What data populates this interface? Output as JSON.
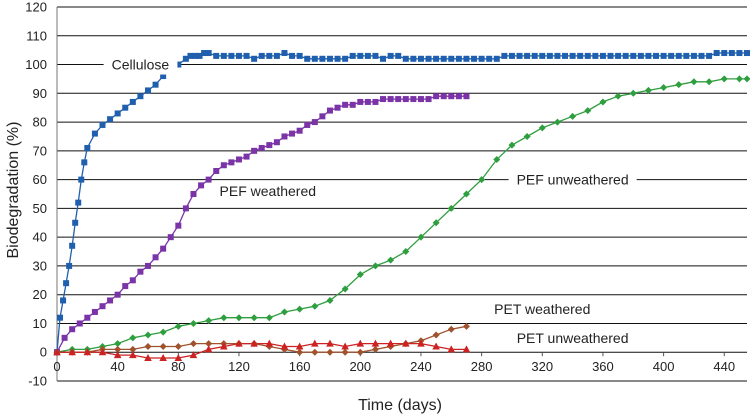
{
  "chart_data": {
    "type": "line",
    "title": "",
    "xlabel": "Time (days)",
    "ylabel": "Biodegradation (%)",
    "xlim": [
      0,
      455
    ],
    "ylim": [
      -10,
      120
    ],
    "xticks": [
      0,
      40,
      80,
      120,
      160,
      200,
      240,
      280,
      320,
      360,
      400,
      440
    ],
    "yticks": [
      -10,
      0,
      10,
      20,
      30,
      40,
      50,
      60,
      70,
      80,
      90,
      100,
      110,
      120
    ],
    "grid": "horizontal",
    "legend": "none (labels placed on chart)",
    "series": [
      {
        "name": "Cellulose",
        "color": "#1f5fad",
        "marker": "square",
        "x": [
          0,
          2,
          4,
          6,
          8,
          10,
          12,
          14,
          16,
          18,
          20,
          25,
          30,
          35,
          40,
          45,
          50,
          55,
          60,
          65,
          70,
          75,
          80,
          85,
          88,
          91,
          94,
          97,
          100,
          105,
          110,
          115,
          120,
          125,
          130,
          135,
          140,
          145,
          150,
          155,
          160,
          165,
          170,
          175,
          180,
          185,
          190,
          195,
          200,
          205,
          210,
          215,
          220,
          225,
          230,
          235,
          240,
          245,
          250,
          255,
          260,
          265,
          270,
          275,
          280,
          285,
          290,
          295,
          300,
          305,
          310,
          315,
          320,
          325,
          330,
          335,
          340,
          345,
          350,
          355,
          360,
          365,
          370,
          375,
          380,
          385,
          390,
          395,
          400,
          405,
          410,
          415,
          420,
          425,
          430,
          435,
          440,
          445,
          450,
          455
        ],
        "values": [
          0,
          12,
          18,
          24,
          30,
          37,
          45,
          52,
          60,
          66,
          71,
          76,
          79,
          81,
          83,
          85,
          87,
          89,
          91,
          93,
          96,
          98,
          100,
          102,
          103,
          103,
          103,
          104,
          104,
          103,
          103,
          103,
          103,
          103,
          102,
          103,
          103,
          103,
          104,
          103,
          103,
          102,
          102,
          102,
          102,
          102,
          102,
          103,
          103,
          103,
          103,
          102,
          103,
          103,
          102,
          102,
          102,
          102,
          102,
          102,
          102,
          102,
          102,
          102,
          102,
          102,
          102,
          103,
          103,
          103,
          103,
          103,
          103,
          103,
          103,
          103,
          103,
          103,
          103,
          103,
          103,
          103,
          103,
          103,
          103,
          103,
          103,
          103,
          103,
          103,
          103,
          103,
          103,
          103,
          103,
          104,
          104,
          104,
          104,
          104
        ]
      },
      {
        "name": "PEF weathered",
        "color": "#7b33a8",
        "marker": "square",
        "x": [
          0,
          5,
          10,
          15,
          20,
          25,
          30,
          35,
          40,
          45,
          50,
          55,
          60,
          65,
          70,
          75,
          80,
          85,
          90,
          95,
          100,
          105,
          110,
          115,
          120,
          125,
          130,
          135,
          140,
          145,
          150,
          155,
          160,
          165,
          170,
          175,
          180,
          185,
          190,
          195,
          200,
          205,
          210,
          215,
          220,
          225,
          230,
          235,
          240,
          245,
          250,
          255,
          260,
          265,
          270
        ],
        "values": [
          0,
          5,
          8,
          10,
          12,
          14,
          16,
          18,
          20,
          23,
          25,
          28,
          30,
          33,
          36,
          40,
          44,
          50,
          55,
          58,
          60,
          63,
          65,
          66,
          67,
          68,
          70,
          71,
          72,
          73,
          75,
          76,
          77,
          79,
          80,
          82,
          84,
          85,
          86,
          86,
          87,
          87,
          87,
          88,
          88,
          88,
          88,
          88,
          88,
          88,
          89,
          89,
          89,
          89,
          89
        ]
      },
      {
        "name": "PEF unweathered",
        "color": "#2e9e3e",
        "marker": "diamond",
        "x": [
          0,
          10,
          20,
          30,
          40,
          50,
          60,
          70,
          80,
          90,
          100,
          110,
          120,
          130,
          140,
          150,
          160,
          170,
          180,
          190,
          200,
          210,
          220,
          230,
          240,
          250,
          260,
          270,
          280,
          290,
          300,
          310,
          320,
          330,
          340,
          350,
          360,
          370,
          380,
          390,
          400,
          410,
          420,
          430,
          440,
          450,
          455
        ],
        "values": [
          0,
          1,
          1,
          2,
          3,
          5,
          6,
          7,
          9,
          10,
          11,
          12,
          12,
          12,
          12,
          14,
          15,
          16,
          18,
          22,
          27,
          30,
          32,
          35,
          40,
          45,
          50,
          55,
          60,
          67,
          72,
          75,
          78,
          80,
          82,
          84,
          87,
          89,
          90,
          91,
          92,
          93,
          94,
          94,
          95,
          95,
          95
        ]
      },
      {
        "name": "PET weathered",
        "color": "#a0522d",
        "marker": "diamond",
        "x": [
          0,
          10,
          20,
          30,
          40,
          50,
          60,
          70,
          80,
          90,
          100,
          110,
          120,
          130,
          140,
          150,
          160,
          170,
          180,
          190,
          200,
          210,
          220,
          230,
          240,
          250,
          260,
          270
        ],
        "values": [
          0,
          0,
          0,
          1,
          1,
          1,
          2,
          2,
          2,
          3,
          3,
          3,
          3,
          3,
          2,
          1,
          0,
          0,
          0,
          0,
          0,
          1,
          2,
          3,
          4,
          6,
          8,
          9
        ]
      },
      {
        "name": "PET unweathered",
        "color": "#cc2222",
        "marker": "triangle",
        "x": [
          0,
          10,
          20,
          30,
          40,
          50,
          60,
          70,
          80,
          90,
          100,
          110,
          120,
          130,
          140,
          150,
          160,
          170,
          180,
          190,
          200,
          210,
          220,
          230,
          240,
          250,
          260,
          270
        ],
        "values": [
          0,
          0,
          0,
          0,
          -1,
          -1,
          -2,
          -2,
          -2,
          -1,
          1,
          2,
          3,
          3,
          3,
          2,
          2,
          3,
          3,
          2,
          3,
          3,
          3,
          3,
          3,
          2,
          1,
          1
        ]
      }
    ],
    "annotations": [
      {
        "text": "Cellulose",
        "x": 55,
        "y": 100
      },
      {
        "text": "PEF weathered",
        "x": 139,
        "y": 56
      },
      {
        "text": "PEF unweathered",
        "x": 340,
        "y": 60
      },
      {
        "text": "PET weathered",
        "x": 320,
        "y": 15
      },
      {
        "text": "PET unweathered",
        "x": 340,
        "y": 5
      }
    ]
  }
}
